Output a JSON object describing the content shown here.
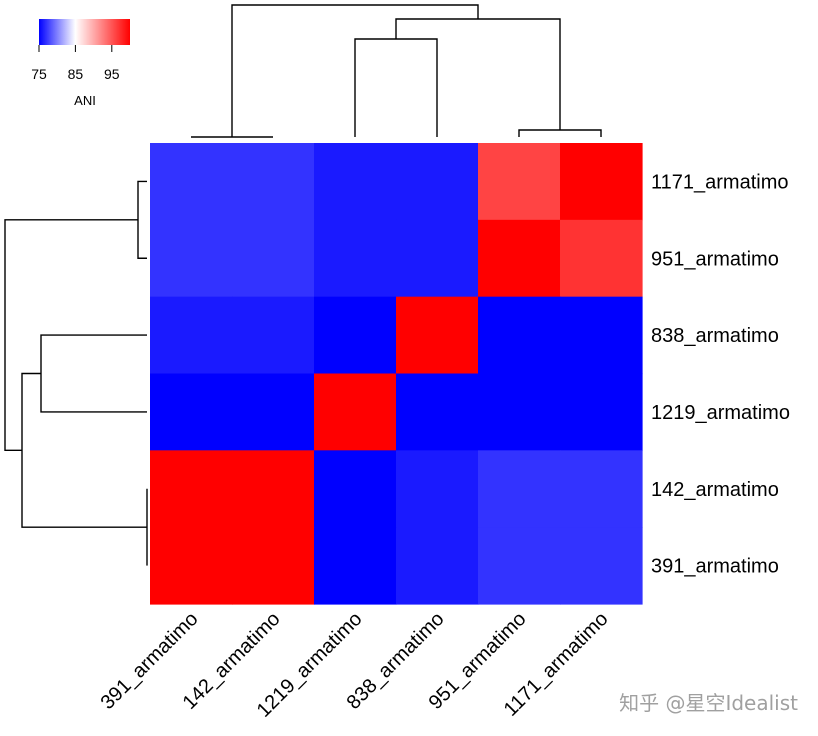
{
  "chart_data": {
    "type": "heatmap",
    "title": "",
    "columns": [
      "391_armatimo",
      "142_armatimo",
      "1219_armatimo",
      "838_armatimo",
      "951_armatimo",
      "1171_armatimo"
    ],
    "rows": [
      "1171_armatimo",
      "951_armatimo",
      "838_armatimo",
      "1219_armatimo",
      "142_armatimo",
      "391_armatimo"
    ],
    "values": [
      [
        77,
        77,
        76,
        76,
        96,
        100
      ],
      [
        77,
        77,
        76,
        76,
        100,
        97
      ],
      [
        76,
        76,
        75,
        100,
        75,
        75
      ],
      [
        75,
        75,
        100,
        75,
        75,
        75
      ],
      [
        100,
        100,
        75,
        76,
        77,
        77
      ],
      [
        100,
        100,
        75,
        76,
        77,
        77
      ]
    ],
    "color_scale": {
      "min": 75,
      "mid": 85,
      "max": 100,
      "low_color": "#0000ff",
      "mid_color": "#ffffff",
      "high_color": "#ff0000"
    },
    "legend": {
      "title": "ANI",
      "ticks": [
        75,
        85,
        95
      ],
      "placement": "top-left"
    },
    "row_dendrogram": [
      [
        0,
        1
      ],
      [
        2,
        3
      ],
      [
        4,
        5
      ],
      [
        [
          2,
          3
        ],
        [
          4,
          5
        ]
      ],
      [
        [
          0,
          1
        ],
        [
          [
            2,
            3
          ],
          [
            4,
            5
          ]
        ]
      ]
    ],
    "column_dendrogram": [
      [
        0,
        1
      ],
      [
        4,
        5
      ],
      [
        2,
        3
      ],
      [
        [
          2,
          3
        ],
        [
          4,
          5
        ]
      ],
      [
        [
          0,
          1
        ],
        [
          [
            2,
            3
          ],
          [
            4,
            5
          ]
        ]
      ]
    ]
  },
  "watermark": "知乎 @星空Idealist"
}
